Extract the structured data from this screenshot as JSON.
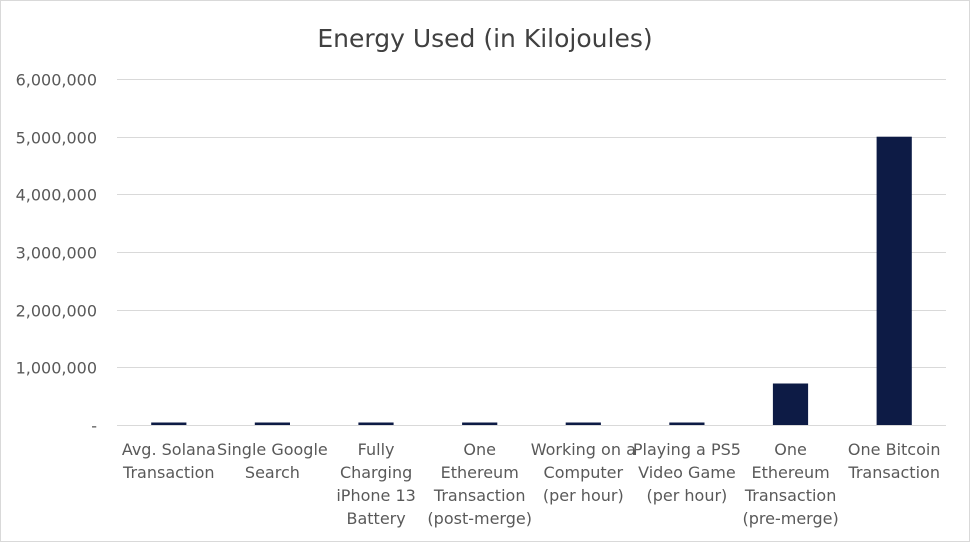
{
  "chart_data": {
    "type": "bar",
    "title": "Energy Used (in Kilojoules)",
    "xlabel": "",
    "ylabel": "",
    "categories": [
      [
        "Avg. Solana",
        "Transaction"
      ],
      [
        "Single Google",
        "Search"
      ],
      [
        "Fully",
        "Charging",
        "iPhone 13",
        "Battery"
      ],
      [
        "One",
        "Ethereum",
        "Transaction",
        "(post-merge)"
      ],
      [
        "Working on a",
        "Computer",
        "(per hour)"
      ],
      [
        "Playing a PS5",
        "Video Game",
        "(per hour)"
      ],
      [
        "One",
        "Ethereum",
        "Transaction",
        "(pre-merge)"
      ],
      [
        "One Bitcoin",
        "Transaction"
      ]
    ],
    "values": [
      0.00066,
      1.08,
      44,
      35,
      43,
      37,
      720000,
      5000000
    ],
    "ylim": [
      0,
      6000000
    ],
    "y_ticks": [
      {
        "value": 0,
        "label": "-"
      },
      {
        "value": 1000000,
        "label": "1,000,000"
      },
      {
        "value": 2000000,
        "label": "2,000,000"
      },
      {
        "value": 3000000,
        "label": "3,000,000"
      },
      {
        "value": 4000000,
        "label": "4,000,000"
      },
      {
        "value": 5000000,
        "label": "5,000,000"
      },
      {
        "value": 6000000,
        "label": "6,000,000"
      }
    ],
    "grid": true,
    "legend": "none",
    "bar_color": "#0d1b45"
  }
}
